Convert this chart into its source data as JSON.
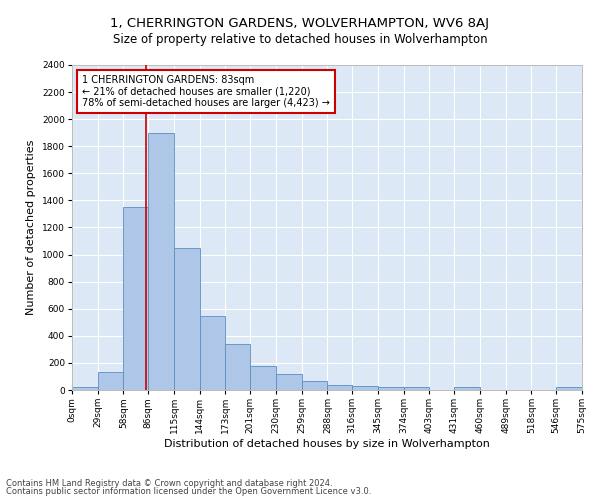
{
  "title": "1, CHERRINGTON GARDENS, WOLVERHAMPTON, WV6 8AJ",
  "subtitle": "Size of property relative to detached houses in Wolverhampton",
  "xlabel": "Distribution of detached houses by size in Wolverhampton",
  "ylabel": "Number of detached properties",
  "bar_color": "#aec6e8",
  "bar_edge_color": "#5a8fc0",
  "background_color": "#dce8f5",
  "grid_color": "#ffffff",
  "bins": [
    0,
    29,
    58,
    86,
    115,
    144,
    173,
    201,
    230,
    259,
    288,
    316,
    345,
    374,
    403,
    431,
    460,
    489,
    518,
    546,
    575
  ],
  "values": [
    20,
    130,
    1350,
    1900,
    1050,
    550,
    340,
    175,
    115,
    65,
    40,
    30,
    25,
    20,
    0,
    20,
    0,
    0,
    0,
    20
  ],
  "tick_labels": [
    "0sqm",
    "29sqm",
    "58sqm",
    "86sqm",
    "115sqm",
    "144sqm",
    "173sqm",
    "201sqm",
    "230sqm",
    "259sqm",
    "288sqm",
    "316sqm",
    "345sqm",
    "374sqm",
    "403sqm",
    "431sqm",
    "460sqm",
    "489sqm",
    "518sqm",
    "546sqm",
    "575sqm"
  ],
  "property_line_x": 83,
  "annotation_line1": "1 CHERRINGTON GARDENS: 83sqm",
  "annotation_line2": "← 21% of detached houses are smaller (1,220)",
  "annotation_line3": "78% of semi-detached houses are larger (4,423) →",
  "annotation_box_color": "#ffffff",
  "annotation_box_edge": "#cc0000",
  "property_vline_color": "#cc0000",
  "ylim": [
    0,
    2400
  ],
  "yticks": [
    0,
    200,
    400,
    600,
    800,
    1000,
    1200,
    1400,
    1600,
    1800,
    2000,
    2200,
    2400
  ],
  "footer_line1": "Contains HM Land Registry data © Crown copyright and database right 2024.",
  "footer_line2": "Contains public sector information licensed under the Open Government Licence v3.0.",
  "title_fontsize": 9.5,
  "subtitle_fontsize": 8.5,
  "xlabel_fontsize": 8,
  "ylabel_fontsize": 8,
  "tick_fontsize": 6.5,
  "annotation_fontsize": 7,
  "footer_fontsize": 6
}
